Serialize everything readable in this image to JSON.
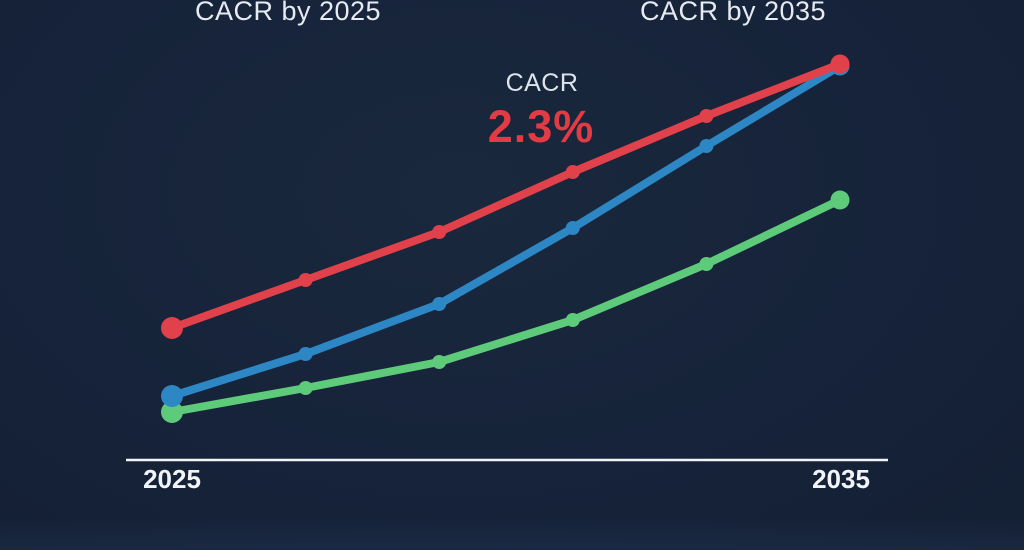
{
  "labels": {
    "header_left": "CACR by 2025",
    "header_right": "CACR by 2035",
    "annotation_title": "CACR",
    "annotation_value": "2.3%"
  },
  "colors": {
    "background": "#16233a",
    "text": "#e9eef4",
    "accent_red": "#e23b44",
    "axis": "#f2f5f8"
  },
  "chart_data": {
    "type": "line",
    "title": "CACR growth comparison 2025-2035",
    "x": [
      2025,
      2027,
      2029,
      2031,
      2033,
      2035
    ],
    "xtick_labels": [
      "2025",
      "2035"
    ],
    "xlabel": "",
    "ylabel": "",
    "ylim": [
      0,
      100
    ],
    "grid": false,
    "legend": false,
    "y_axis_shown": false,
    "annotation": {
      "title": "CACR",
      "value": "2.3%"
    },
    "series": [
      {
        "name": "series-green",
        "color": "#5ecb7b",
        "values": [
          12,
          18,
          24.5,
          35,
          49,
          65
        ]
      },
      {
        "name": "series-blue",
        "color": "#2d87c4",
        "values": [
          16,
          26.5,
          39,
          58,
          78.5,
          98.5
        ]
      },
      {
        "name": "series-red",
        "color": "#e0414a",
        "values": [
          33,
          45,
          57,
          72,
          86,
          99
        ]
      }
    ]
  }
}
